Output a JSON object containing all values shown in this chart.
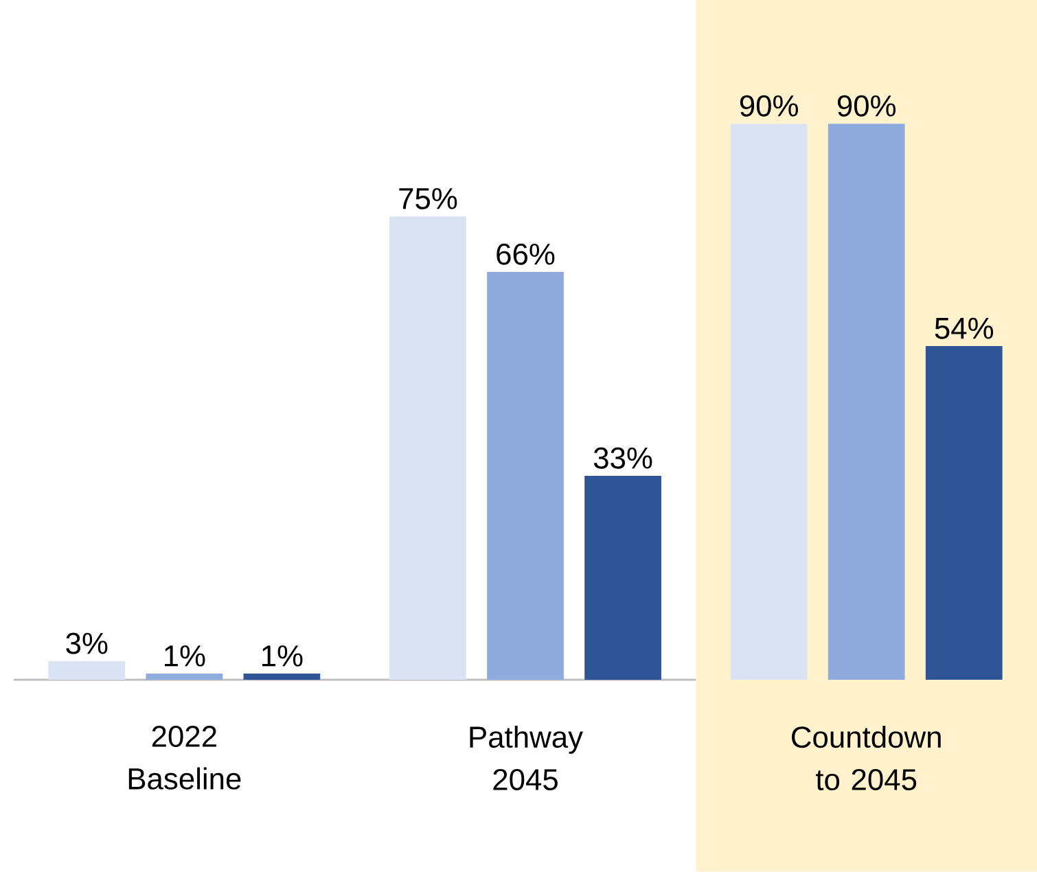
{
  "chart_data": {
    "type": "bar",
    "categories": [
      "2022 Baseline",
      "Pathway 2045",
      "Countdown to 2045"
    ],
    "series": [
      {
        "color": "#dae3f3",
        "values": [
          3,
          75,
          90
        ],
        "value_labels": [
          "3%",
          "75%",
          "90%"
        ]
      },
      {
        "color": "#8faadc",
        "values": [
          1,
          66,
          90
        ],
        "value_labels": [
          "1%",
          "66%",
          "90%"
        ]
      },
      {
        "color": "#2f5597",
        "values": [
          1,
          33,
          54
        ],
        "value_labels": [
          "1%",
          "33%",
          "54%"
        ]
      }
    ],
    "bands": [
      {
        "axis": "x",
        "from": "Countdown to 2045",
        "to": "Countdown to 2045",
        "color": "#fff2cc"
      }
    ]
  }
}
